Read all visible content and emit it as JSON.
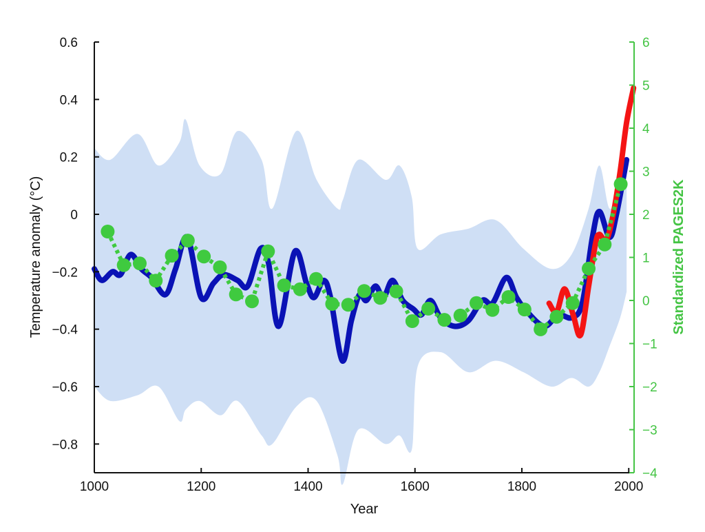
{
  "chart_data": {
    "type": "line",
    "title": "",
    "xlabel": "Year",
    "ylabel": "Temperature anomaly (°C)",
    "y2label": "Standardized PAGES2K",
    "xlim": [
      1000,
      2010
    ],
    "ylim": [
      -0.9,
      0.6
    ],
    "y2lim": [
      -4,
      6
    ],
    "xticks": [
      1000,
      1200,
      1400,
      1600,
      1800,
      2000
    ],
    "yticks": [
      -0.8,
      -0.6,
      -0.4,
      -0.2,
      0,
      0.2,
      0.4,
      0.6
    ],
    "ytick_labels": [
      "−0.8",
      "−0.6",
      "−0.4",
      "−0.2",
      "0",
      "0.2",
      "0.4",
      "0.6"
    ],
    "y2ticks": [
      -4,
      -3,
      -2,
      -1,
      0,
      1,
      2,
      3,
      4,
      5,
      6
    ],
    "y2tick_labels": [
      "−4",
      "−3",
      "−2",
      "−1",
      "0",
      "1",
      "2",
      "3",
      "4",
      "5",
      "6"
    ],
    "grid": false,
    "colors": {
      "band": "#cfdff5",
      "reconstruction": "#0a12b5",
      "instrumental": "#f41414",
      "pages2k": "#3fca3f",
      "right_axis": "#44c444"
    },
    "uncertainty_band": {
      "x": [
        1000,
        1030,
        1081,
        1120,
        1159,
        1171,
        1197,
        1236,
        1268,
        1313,
        1333,
        1378,
        1416,
        1455,
        1465,
        1494,
        1545,
        1571,
        1594,
        1605,
        1648,
        1700,
        1751,
        1803,
        1855,
        1893,
        1925,
        1945,
        1964,
        1984,
        1996
      ],
      "upper": [
        0.23,
        0.19,
        0.28,
        0.17,
        0.25,
        0.33,
        0.17,
        0.14,
        0.29,
        0.19,
        0.02,
        0.29,
        0.12,
        0.02,
        0.05,
        0.19,
        0.12,
        0.17,
        0.06,
        -0.12,
        -0.07,
        -0.05,
        -0.02,
        -0.12,
        -0.19,
        -0.14,
        0.02,
        0.17,
        0.02,
        0.1,
        0.12
      ],
      "lower": [
        -0.6,
        -0.65,
        -0.63,
        -0.6,
        -0.72,
        -0.68,
        -0.65,
        -0.7,
        -0.65,
        -0.77,
        -0.8,
        -0.67,
        -0.65,
        -0.84,
        -0.94,
        -0.75,
        -0.8,
        -0.77,
        -0.82,
        -0.53,
        -0.48,
        -0.55,
        -0.51,
        -0.55,
        -0.6,
        -0.57,
        -0.6,
        -0.55,
        -0.46,
        -0.36,
        -0.27
      ]
    },
    "series": [
      {
        "axis": "left",
        "style": "solid",
        "x": [
          1000,
          1014,
          1034,
          1049,
          1068,
          1088,
          1107,
          1133,
          1152,
          1174,
          1200,
          1223,
          1242,
          1268,
          1287,
          1311,
          1326,
          1345,
          1375,
          1397,
          1411,
          1429,
          1442,
          1464,
          1481,
          1496,
          1509,
          1526,
          1541,
          1558,
          1577,
          1597,
          1612,
          1629,
          1648,
          1674,
          1700,
          1726,
          1745,
          1771,
          1790,
          1810,
          1842,
          1868,
          1893,
          1913,
          1932,
          1945,
          1964,
          1977,
          1996
        ],
        "y": [
          -0.19,
          -0.23,
          -0.2,
          -0.21,
          -0.14,
          -0.19,
          -0.22,
          -0.28,
          -0.19,
          -0.08,
          -0.29,
          -0.24,
          -0.21,
          -0.23,
          -0.25,
          -0.12,
          -0.17,
          -0.39,
          -0.13,
          -0.24,
          -0.29,
          -0.23,
          -0.29,
          -0.51,
          -0.37,
          -0.28,
          -0.3,
          -0.25,
          -0.29,
          -0.23,
          -0.3,
          -0.33,
          -0.35,
          -0.3,
          -0.36,
          -0.39,
          -0.37,
          -0.3,
          -0.31,
          -0.22,
          -0.29,
          -0.34,
          -0.39,
          -0.35,
          -0.36,
          -0.31,
          -0.08,
          0.01,
          -0.08,
          0.0,
          0.19
        ]
      },
      {
        "axis": "left",
        "style": "solid",
        "x": [
          1851,
          1865,
          1880,
          1896,
          1910,
          1925,
          1938,
          1945,
          1958,
          1971,
          1984,
          1996,
          2009
        ],
        "y": [
          -0.31,
          -0.34,
          -0.26,
          -0.35,
          -0.42,
          -0.25,
          -0.1,
          -0.07,
          -0.09,
          0.0,
          0.15,
          0.32,
          0.44
        ]
      },
      {
        "axis": "right",
        "style": "dotted-markers",
        "x": [
          1025,
          1055,
          1085,
          1115,
          1145,
          1175,
          1205,
          1235,
          1265,
          1295,
          1325,
          1355,
          1385,
          1415,
          1445,
          1475,
          1505,
          1535,
          1565,
          1595,
          1625,
          1655,
          1685,
          1715,
          1745,
          1775,
          1805,
          1835,
          1865,
          1895,
          1925,
          1955,
          1985
        ],
        "y": [
          1.6,
          0.82,
          0.86,
          0.46,
          1.04,
          1.39,
          1.02,
          0.77,
          0.14,
          -0.02,
          1.14,
          0.35,
          0.26,
          0.5,
          -0.08,
          -0.1,
          0.22,
          0.06,
          0.21,
          -0.48,
          -0.19,
          -0.45,
          -0.35,
          -0.06,
          -0.22,
          0.08,
          -0.21,
          -0.67,
          -0.38,
          -0.06,
          0.74,
          1.3,
          2.7
        ]
      }
    ]
  }
}
